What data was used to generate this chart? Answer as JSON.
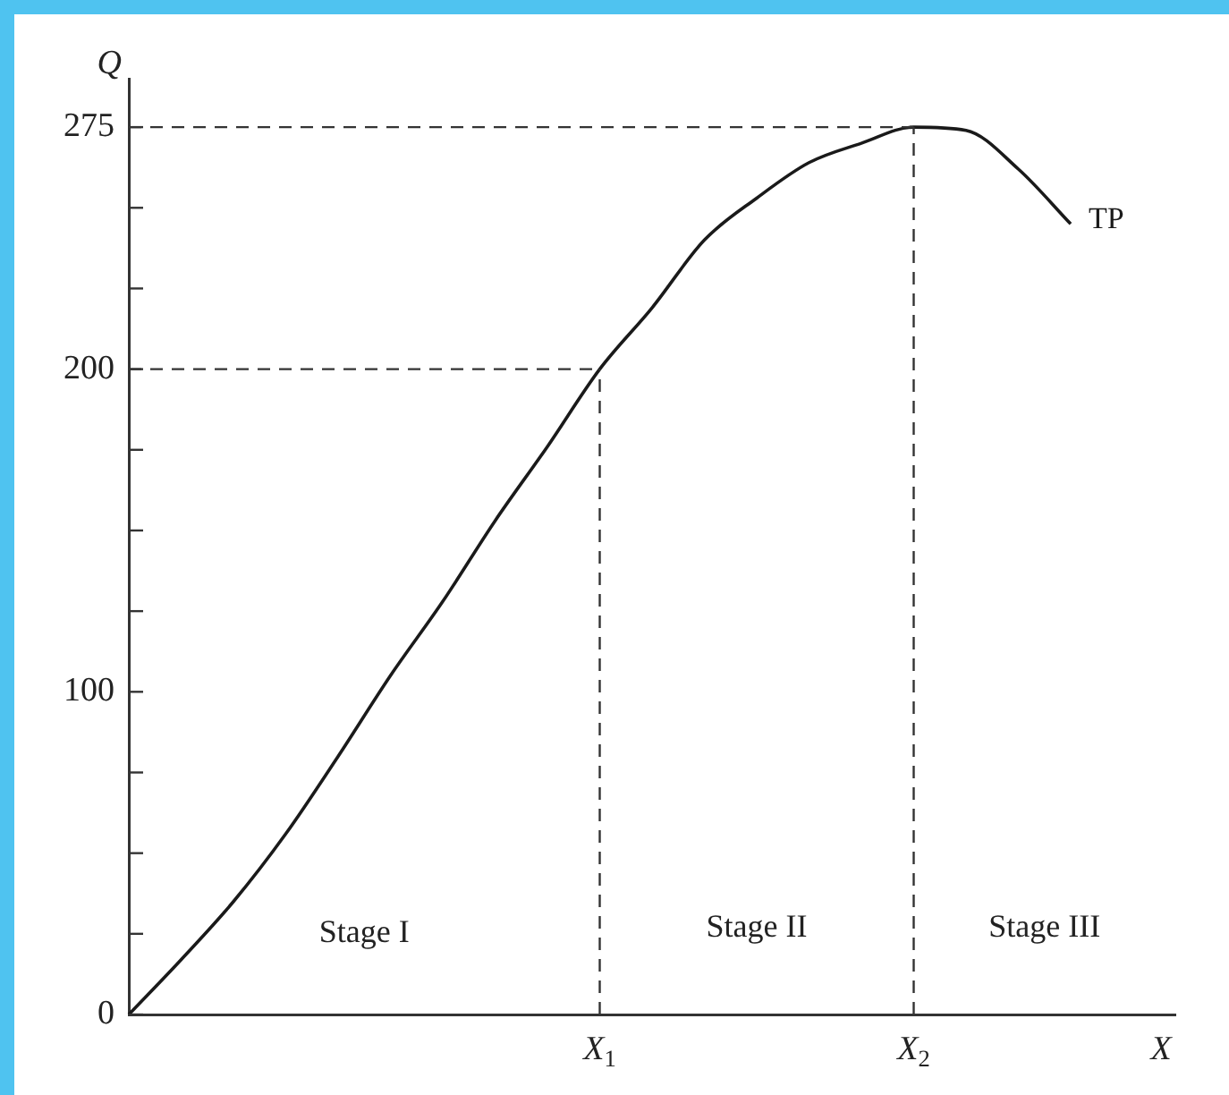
{
  "chart_data": {
    "type": "line",
    "xlabel": "X",
    "ylabel": "Q",
    "categories": [
      null,
      null,
      null,
      null,
      null,
      null,
      null,
      null,
      null,
      "X$_{1}$",
      null,
      null,
      null,
      null,
      null,
      "X$_{2}$",
      null,
      null,
      null,
      null,
      null
    ],
    "series": [
      {
        "name": "TP",
        "color": "#1a1a1a",
        "values": [
          0,
          17,
          35,
          56,
          80,
          105,
          128,
          153,
          176,
          200,
          219,
          240,
          253,
          264,
          270,
          275,
          274,
          262,
          245,
          null,
          null
        ]
      }
    ],
    "ylim": [
      0,
      290
    ],
    "yticks": [
      0,
      {
        "value": 25,
        "label": null
      },
      {
        "value": 50,
        "label": null
      },
      {
        "value": 75,
        "label": null
      },
      100,
      {
        "value": 125,
        "label": null
      },
      {
        "value": 150,
        "label": null
      },
      {
        "value": 175,
        "label": null
      },
      200,
      {
        "value": 225,
        "label": null
      },
      {
        "value": 250,
        "label": null
      },
      275
    ],
    "ref_lines": [
      {
        "axis": "y",
        "value": 200,
        "line_style": "dashed"
      },
      {
        "axis": "y",
        "value": 275,
        "line_style": "dashed"
      },
      {
        "axis": "x",
        "value": "X$_{1}$",
        "line_style": "dashed"
      },
      {
        "axis": "x",
        "value": "X$_{2}$",
        "line_style": "dashed"
      }
    ],
    "annotations": [
      "Stage I",
      "Stage II",
      "Stage III"
    ],
    "grid": false,
    "legend": false,
    "marker": "none",
    "line_style": "solid"
  }
}
